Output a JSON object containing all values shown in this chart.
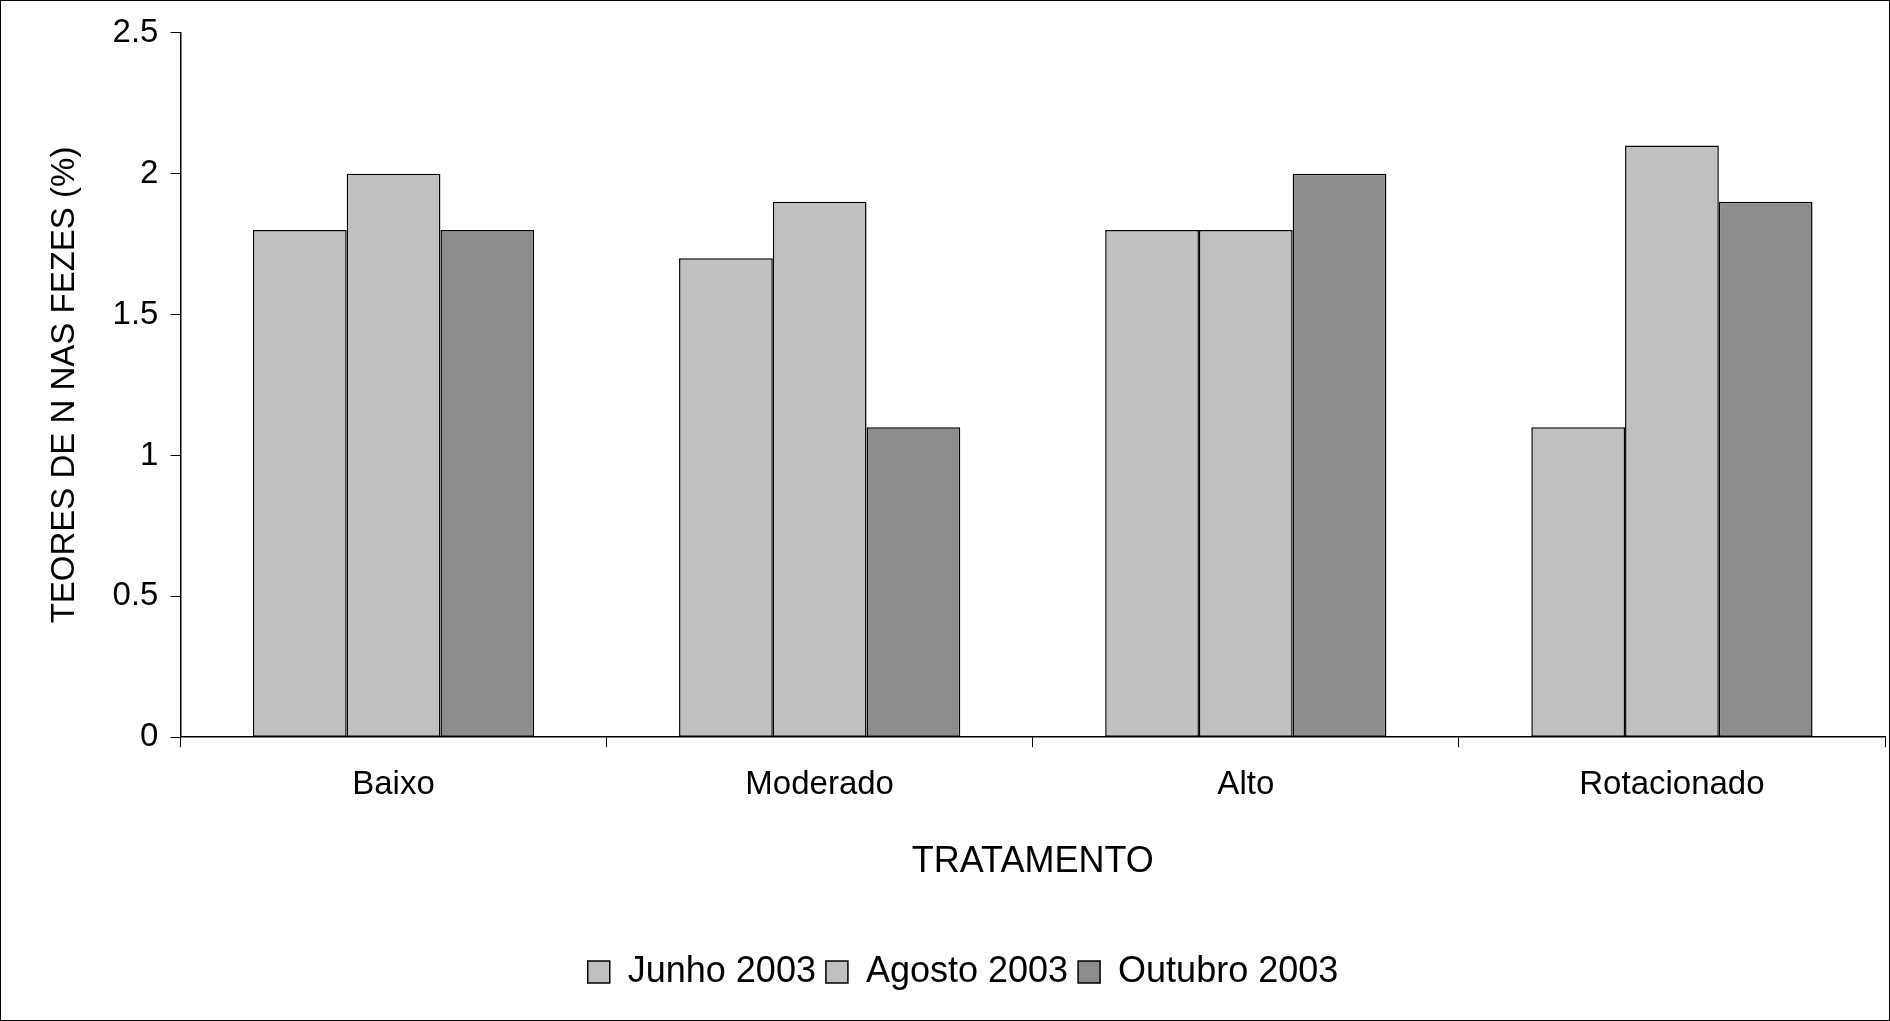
{
  "chart_data": {
    "type": "bar",
    "xlabel": "TRATAMENTO",
    "ylabel": "TEORES DE N NAS FEZES (%)",
    "categories": [
      "Baixo",
      "Moderado",
      "Alto",
      "Rotacionado"
    ],
    "series": [
      {
        "name": "Junho 2003",
        "color": "#c0c0c0",
        "values": [
          1.8,
          1.7,
          1.8,
          1.1
        ]
      },
      {
        "name": "Agosto 2003",
        "color": "#c0c0c0",
        "values": [
          2.0,
          1.9,
          1.8,
          2.1
        ]
      },
      {
        "name": "Outubro 2003",
        "color": "#8c8c8c",
        "values": [
          1.8,
          1.1,
          2.0,
          1.9
        ]
      }
    ],
    "ylim": [
      0,
      2.5
    ],
    "yticks": [
      0,
      0.5,
      1,
      1.5,
      2,
      2.5
    ],
    "grid": false,
    "legend": "bottom"
  }
}
